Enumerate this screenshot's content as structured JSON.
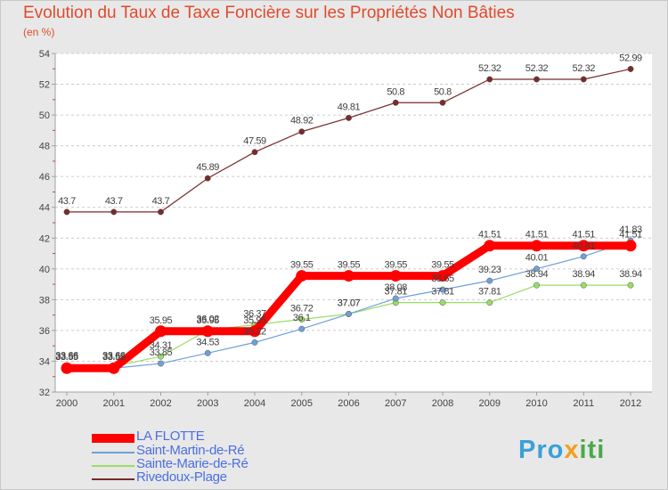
{
  "chart_data": {
    "type": "line",
    "title": "Evolution du Taux de Taxe Foncière sur les Propriétés Non Bâties",
    "ylabel": "(en %)",
    "xlabel": "",
    "categories": [
      "2000",
      "2001",
      "2002",
      "2003",
      "2004",
      "2005",
      "2006",
      "2007",
      "2008",
      "2009",
      "2010",
      "2011",
      "2012"
    ],
    "ylim": [
      32,
      54
    ],
    "yticks": [
      32,
      34,
      36,
      38,
      40,
      42,
      44,
      46,
      48,
      50,
      52,
      54
    ],
    "grid": "horizontal-dashed",
    "legend_position": "bottom-left",
    "series": [
      {
        "name": "LA FLOTTE",
        "color": "#ff0000",
        "values": [
          33.55,
          33.55,
          35.95,
          35.95,
          35.95,
          39.55,
          39.55,
          39.55,
          39.55,
          41.51,
          41.51,
          41.51,
          41.51
        ],
        "labels": [
          "33.55",
          "33.55",
          "35.95",
          "35.95",
          "35.95",
          "39.55",
          "39.55",
          "39.55",
          "39.55",
          "41.51",
          "41.51",
          "41.51",
          "41.51"
        ]
      },
      {
        "name": "Saint-Martin-de-Ré",
        "color": "#6fa0d8",
        "values": [
          33.55,
          33.55,
          33.85,
          34.53,
          35.22,
          36.1,
          37.07,
          38.08,
          38.65,
          39.23,
          40.01,
          40.81,
          41.83
        ],
        "labels": [
          "33.55",
          "33.55",
          "33.85",
          "34.53",
          "35.22",
          "36.1",
          "37.07",
          "38.08",
          "38.65",
          "39.23",
          "40.01",
          "40.81",
          "41.83"
        ]
      },
      {
        "name": "Sainte-Marie-de-Ré",
        "color": "#99dd66",
        "values": [
          33.66,
          33.66,
          34.31,
          36.02,
          36.37,
          36.72,
          37.07,
          37.81,
          37.81,
          37.81,
          38.94,
          38.94,
          38.94
        ],
        "labels": [
          "33.66",
          "33.66",
          "34.31",
          "36.02",
          "36.37",
          "36.72",
          "37.07",
          "37.81",
          "37.81",
          "37.81",
          "38.94",
          "38.94",
          "38.94"
        ]
      },
      {
        "name": "Rivedoux-Plage",
        "color": "#7a2a2a",
        "values": [
          43.7,
          43.7,
          43.7,
          45.89,
          47.59,
          48.92,
          49.81,
          50.8,
          50.8,
          52.32,
          52.32,
          52.32,
          52.99
        ],
        "labels": [
          "43.7",
          "43.7",
          "43.7",
          "45.89",
          "47.59",
          "48.92",
          "49.81",
          "50.8",
          "50.8",
          "52.32",
          "52.32",
          "52.32",
          "52.99"
        ]
      }
    ]
  },
  "logo": {
    "part1": "Pro",
    "part2": "x",
    "part3": "iti"
  }
}
